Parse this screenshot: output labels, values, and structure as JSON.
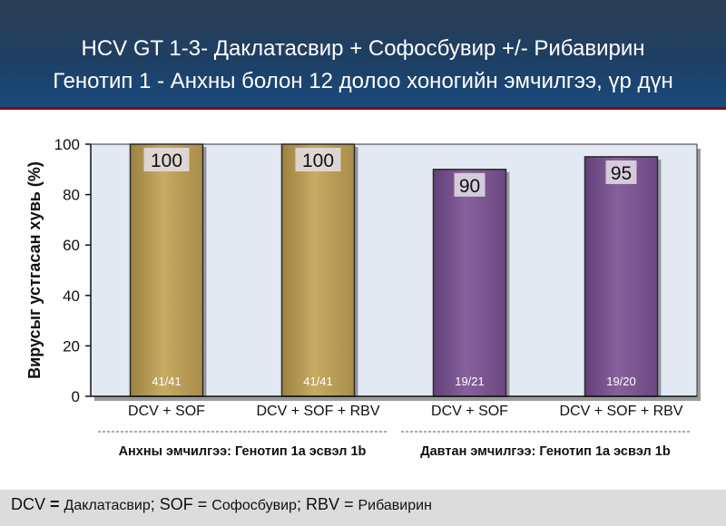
{
  "header": {
    "title_line1": "HCV GT 1-3- Даклатасвир + Софосбувир +/- Рибавирин",
    "title_line2": "Генотип 1 - Анхны болон 12 долоо хоногийн эмчилгээ, үр дүн"
  },
  "chart_data": {
    "type": "bar",
    "title": "",
    "ylabel": "Вирусыг устгасан хувь (%)",
    "xlabel": "",
    "ylim": [
      0,
      100
    ],
    "yticks": [
      0,
      20,
      40,
      60,
      80,
      100
    ],
    "grid": false,
    "categories": [
      "DCV + SOF",
      "DCV + SOF + RBV",
      "DCV + SOF",
      "DCV + SOF + RBV"
    ],
    "values": [
      100,
      100,
      90,
      95
    ],
    "value_labels": [
      "100",
      "100",
      "90",
      "95"
    ],
    "counts": [
      "41/41",
      "41/41",
      "19/21",
      "19/20"
    ],
    "groups": [
      {
        "label": "Анхны эмчилгээ: Генотип 1а эсвэл 1b",
        "bars": [
          0,
          1
        ],
        "color": "#b59a52"
      },
      {
        "label": "Давтан эмчилгээ: Генотип 1а эсвэл 1b",
        "bars": [
          2,
          3
        ],
        "color": "#75508a"
      }
    ],
    "colors": {
      "plot_background": "#e3e9f3",
      "naive": "#b59a52",
      "experienced": "#75508a"
    }
  },
  "footer": {
    "abbr1": "DCV",
    "eq1": " = ",
    "def1": "Даклатасвир",
    "sep1": "; ",
    "abbr2": "SOF",
    "eq2": " = ",
    "def2": "Софосбувир",
    "sep2": "; ",
    "abbr3": "RBV",
    "eq3": " = ",
    "def3": "Рибавирин"
  }
}
